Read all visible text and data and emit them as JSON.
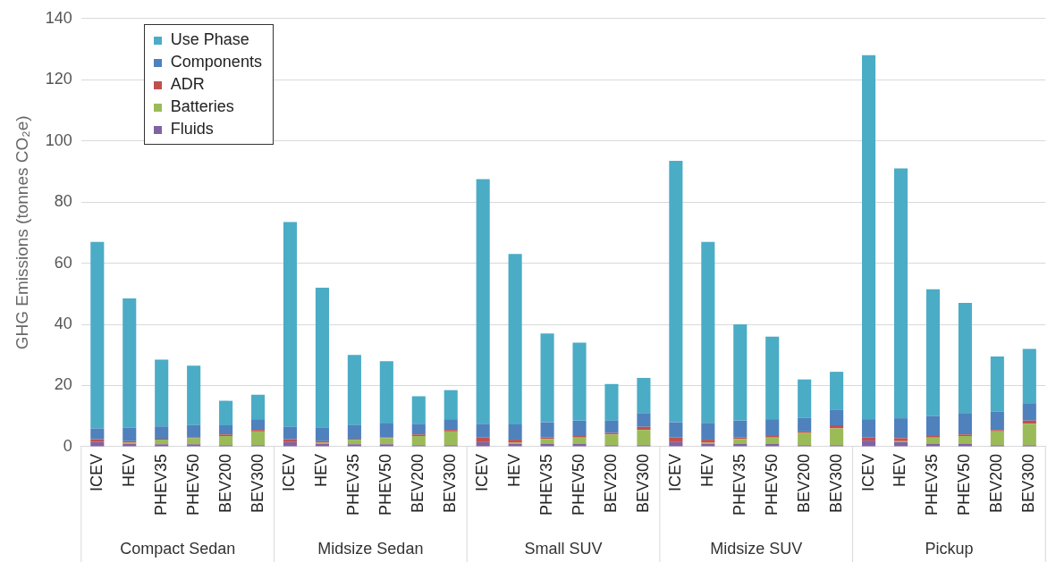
{
  "chart_data": {
    "type": "bar",
    "stacked": true,
    "ylabel": "GHG Emissions (tonnes CO₂e)",
    "categories": [
      "ICEV",
      "HEV",
      "PHEV35",
      "PHEV50",
      "BEV200",
      "BEV300",
      "ICEV",
      "HEV",
      "PHEV35",
      "PHEV50",
      "BEV200",
      "BEV300",
      "ICEV",
      "HEV",
      "PHEV35",
      "PHEV50",
      "BEV200",
      "BEV300",
      "ICEV",
      "HEV",
      "PHEV35",
      "PHEV50",
      "BEV200",
      "BEV300",
      "ICEV",
      "HEV",
      "PHEV35",
      "PHEV50",
      "BEV200",
      "BEV300"
    ],
    "annotations": [
      "Compact Sedan",
      "Midsize Sedan",
      "Small SUV",
      "Midsize SUV",
      "Pickup"
    ],
    "series": [
      {
        "name": "Fluids",
        "color": "#8064a2",
        "values": [
          1.5,
          1,
          0.8,
          0.8,
          0.5,
          0.5,
          1.5,
          1,
          0.8,
          0.8,
          0.5,
          0.5,
          1.5,
          1,
          1,
          1,
          0.5,
          0.5,
          1.5,
          1,
          1,
          1,
          0.5,
          0.5,
          2,
          1.5,
          1,
          1,
          0.5,
          0.5
        ]
      },
      {
        "name": "Batteries",
        "color": "#9bbb59",
        "values": [
          0,
          0.3,
          1.5,
          2,
          3,
          4.5,
          0,
          0.3,
          1.5,
          2,
          3,
          4.5,
          0,
          0.3,
          1.5,
          2,
          3.5,
          5,
          0,
          0.3,
          1.5,
          2,
          4,
          5.5,
          0,
          0.3,
          2,
          2.5,
          4.5,
          7
        ]
      },
      {
        "name": "ADR",
        "color": "#c0504d",
        "values": [
          1,
          0.5,
          0.3,
          0.3,
          0.5,
          0.5,
          1,
          0.5,
          0.3,
          0.3,
          0.5,
          0.5,
          1.5,
          1,
          0.5,
          0.5,
          0.5,
          1,
          1.5,
          1,
          0.5,
          0.5,
          0.5,
          1,
          1,
          1,
          0.5,
          0.5,
          0.5,
          1
        ]
      },
      {
        "name": "Components",
        "color": "#4f81bd",
        "values": [
          3.5,
          4.5,
          4,
          4,
          3,
          3.5,
          4,
          4.5,
          4.5,
          4.5,
          3.5,
          3.5,
          4.5,
          5,
          5,
          5,
          4,
          4.5,
          5,
          5.5,
          5.5,
          5.5,
          4.5,
          5,
          6,
          6.5,
          6.5,
          7,
          6,
          5.5
        ]
      },
      {
        "name": "Use Phase",
        "color": "#4bacc6",
        "values": [
          61,
          42.2,
          21.9,
          19.4,
          8,
          8,
          67,
          45.7,
          22.9,
          20.4,
          9,
          9.5,
          80,
          55.7,
          29,
          25.5,
          12,
          11.5,
          85.5,
          59.2,
          31.5,
          27,
          12.5,
          12.5,
          119,
          81.7,
          41.5,
          36,
          18,
          18
        ]
      }
    ],
    "ylim": [
      0,
      140
    ],
    "yticks": [
      0,
      20,
      40,
      60,
      80,
      100,
      120,
      140
    ],
    "grid": "y",
    "legend": "top left"
  }
}
